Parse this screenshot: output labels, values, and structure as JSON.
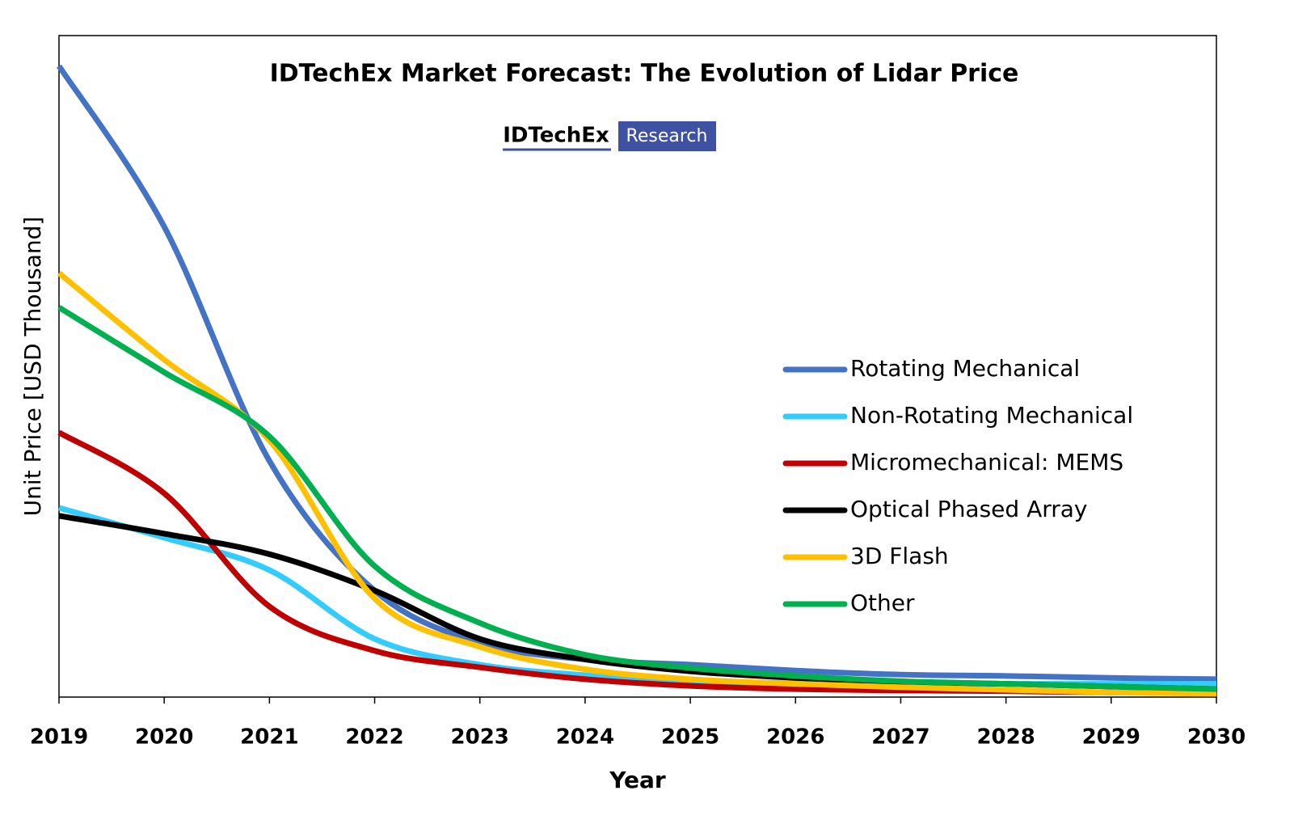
{
  "chart_data": {
    "type": "line",
    "title": "IDTechEx Market Forecast: The Evolution of Lidar Price",
    "logo": {
      "brand": "IDTechEx",
      "tag": "Research"
    },
    "x_label": "Year",
    "y_label": "Unit Price [USD Thousand]",
    "x": [
      2019,
      2020,
      2021,
      2022,
      2023,
      2024,
      2025,
      2026,
      2027,
      2028,
      2029,
      2030
    ],
    "xlim": [
      2019,
      2030
    ],
    "xticks": [
      2019,
      2020,
      2021,
      2022,
      2023,
      2024,
      2025,
      2026,
      2027,
      2028,
      2029,
      2030
    ],
    "ylim": [
      0,
      100
    ],
    "grid": false,
    "legend": "right",
    "series": [
      {
        "name": "Rotating Mechanical",
        "color": "#4472c4",
        "values": [
          95.4,
          71.1,
          35.7,
          16.1,
          8.2,
          5.7,
          4.9,
          4.0,
          3.4,
          3.2,
          2.9,
          2.7
        ]
      },
      {
        "name": "Non-Rotating Mechanical",
        "color": "#33ccff",
        "values": [
          28.6,
          24.1,
          19.2,
          8.8,
          4.9,
          3.3,
          2.4,
          2.1,
          2.0,
          2.0,
          2.0,
          2.0
        ]
      },
      {
        "name": "Micromechanical: MEMS",
        "color": "#c00000",
        "values": [
          40.0,
          30.8,
          13.7,
          7.0,
          4.5,
          2.7,
          1.7,
          1.2,
          1.0,
          0.9,
          0.7,
          0.7
        ]
      },
      {
        "name": "Optical Phased Array",
        "color": "#000000",
        "values": [
          27.4,
          24.7,
          21.6,
          16.1,
          8.8,
          5.7,
          3.9,
          2.9,
          2.3,
          2.0,
          1.6,
          1.2
        ]
      },
      {
        "name": "3D Flash",
        "color": "#ffc000",
        "values": [
          64.1,
          51.0,
          38.8,
          14.9,
          7.6,
          4.2,
          2.7,
          2.0,
          1.5,
          1.1,
          0.7,
          0.5
        ]
      },
      {
        "name": "Other",
        "color": "#00b050",
        "values": [
          58.9,
          49.1,
          39.4,
          19.8,
          11.2,
          6.4,
          4.4,
          3.2,
          2.4,
          2.0,
          1.6,
          1.2
        ]
      }
    ]
  }
}
